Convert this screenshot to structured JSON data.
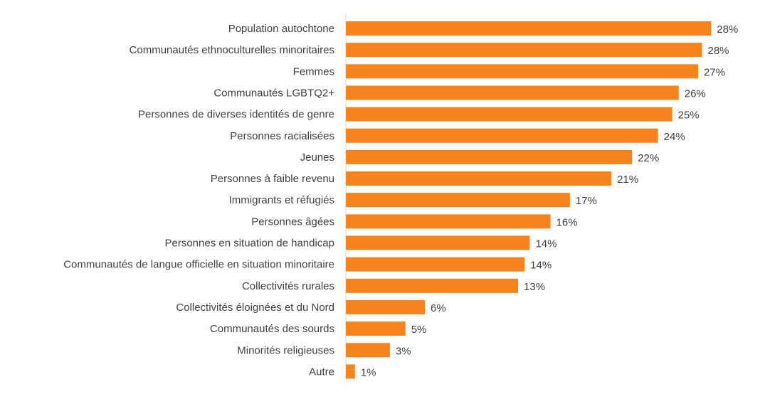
{
  "chart_data": {
    "type": "bar",
    "orientation": "horizontal",
    "title": "",
    "xlabel": "",
    "ylabel": "",
    "xlim": [
      0,
      28.5
    ],
    "grid": false,
    "bar_color": "#F7831F",
    "categories": [
      "Population autochtone",
      "Communautés ethnoculturelles minoritaires",
      "Femmes",
      "Communautés LGBTQ2+",
      "Personnes de diverses identités de genre",
      "Personnes racialisées",
      "Jeunes",
      "Personnes à faible revenu",
      "Immigrants et réfugiés",
      "Personnes âgées",
      "Personnes en situation de handicap",
      "Communautés de langue officielle en situation minoritaire",
      "Collectivités rurales",
      "Collectivités éloignées et du Nord",
      "Communautés des sourds",
      "Minorités religieuses",
      "Autre"
    ],
    "values": [
      28.2,
      27.5,
      27.2,
      25.7,
      25.2,
      24.1,
      22.1,
      20.5,
      17.3,
      15.8,
      14.2,
      13.8,
      13.3,
      6.1,
      4.6,
      3.4,
      0.7
    ],
    "labels": [
      "28%",
      "28%",
      "27%",
      "26%",
      "25%",
      "24%",
      "22%",
      "21%",
      "17%",
      "16%",
      "14%",
      "14%",
      "13%",
      "6%",
      "5%",
      "3%",
      "1%"
    ]
  }
}
